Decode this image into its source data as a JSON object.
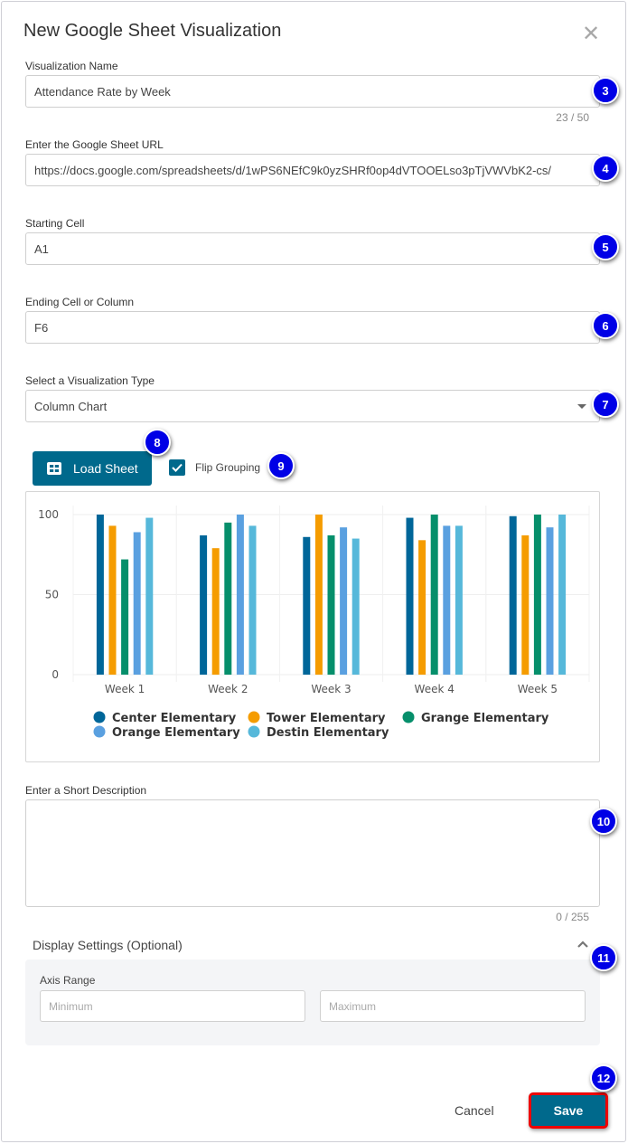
{
  "dialog": {
    "title": "New Google Sheet Visualization",
    "close_icon": "close-icon"
  },
  "fields": {
    "name": {
      "label": "Visualization Name",
      "value": "Attendance Rate by Week",
      "counter": "23 / 50"
    },
    "url": {
      "label": "Enter the Google Sheet URL",
      "value": "https://docs.google.com/spreadsheets/d/1wPS6NEfC9k0yzSHRf0op4dVTOOELso3pTjVWVbK2-cs/"
    },
    "start": {
      "label": "Starting Cell",
      "value": "A1"
    },
    "end": {
      "label": "Ending Cell or Column",
      "value": "F6"
    },
    "type": {
      "label": "Select a Visualization Type",
      "value": "Column Chart"
    }
  },
  "actions": {
    "load_sheet": "Load Sheet",
    "flip_grouping": "Flip Grouping",
    "flip_checked": true
  },
  "description": {
    "label": "Enter a Short Description",
    "value": "",
    "counter": "0 / 255"
  },
  "display_settings": {
    "header": "Display Settings (Optional)",
    "axis_range_label": "Axis Range",
    "min_placeholder": "Minimum",
    "max_placeholder": "Maximum"
  },
  "footer": {
    "cancel": "Cancel",
    "save": "Save"
  },
  "markers": [
    "3",
    "4",
    "5",
    "6",
    "7",
    "8",
    "9",
    "10",
    "11",
    "12"
  ],
  "colors": {
    "accent": "#00698c",
    "marker": "#0000e6",
    "highlight": "#e00000"
  },
  "chart_data": {
    "type": "bar",
    "categories": [
      "Week 1",
      "Week 2",
      "Week 3",
      "Week 4",
      "Week 5"
    ],
    "ylim": [
      0,
      100
    ],
    "yticks": [
      "0",
      "50",
      "100"
    ],
    "grid": true,
    "legend_position": "bottom",
    "series": [
      {
        "name": "Center Elementary",
        "color": "#006699",
        "values": [
          100,
          87,
          86,
          98,
          99
        ]
      },
      {
        "name": "Tower Elementary",
        "color": "#f59c00",
        "values": [
          93,
          79,
          100,
          84,
          87
        ]
      },
      {
        "name": "Grange Elementary",
        "color": "#068f6b",
        "values": [
          72,
          95,
          87,
          100,
          100
        ]
      },
      {
        "name": "Orange Elementary",
        "color": "#5aa0e0",
        "values": [
          89,
          100,
          92,
          93,
          92
        ]
      },
      {
        "name": "Destin Elementary",
        "color": "#56b8da",
        "values": [
          98,
          93,
          85,
          93,
          100
        ]
      }
    ]
  }
}
